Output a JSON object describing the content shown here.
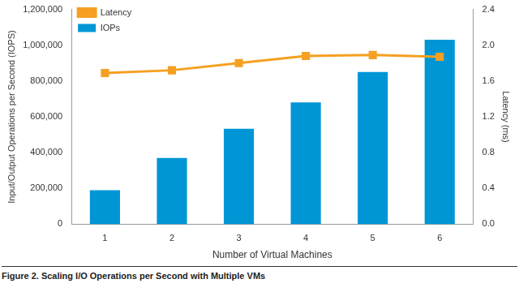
{
  "chart_data": {
    "type": "bar",
    "title": "Figure 2. Scaling I/O Operations per Second with Multiple VMs",
    "x_label": "Number of Virtual Machines",
    "y_label": "Input/Output Operations per Second (IOPS)",
    "y2_label": "Latency (ms)",
    "categories": [
      "1",
      "2",
      "3",
      "4",
      "5",
      "6"
    ],
    "series": [
      {
        "name": "IOPs",
        "type": "bar",
        "color": "#0096d6",
        "values": [
          190000,
          370000,
          533000,
          680000,
          850000,
          1030000
        ]
      },
      {
        "name": "Latency",
        "type": "line",
        "color": "#f5a021",
        "marker": "square",
        "axis": "y2",
        "values": [
          1.69,
          1.72,
          1.8,
          1.88,
          1.89,
          1.87
        ]
      }
    ],
    "ylim": [
      0,
      1200000
    ],
    "yticks": [
      0,
      {
        "value": 200000,
        "label": "200,000"
      },
      {
        "value": 400000,
        "label": "400,000"
      },
      {
        "value": 600000,
        "label": "600,000"
      },
      {
        "value": 800000,
        "label": "800,000"
      },
      {
        "value": 1000000,
        "label": "1,000,000"
      },
      {
        "value": 1200000,
        "label": "1,200,000"
      }
    ],
    "y2lim": [
      0,
      2.4
    ],
    "y2ticks": [
      {
        "value": 0,
        "label": "0.0"
      },
      0.4,
      0.8,
      1.2,
      1.6,
      {
        "value": 2,
        "label": "2.0"
      },
      2.4
    ],
    "grid": false,
    "legend": "upper left"
  }
}
